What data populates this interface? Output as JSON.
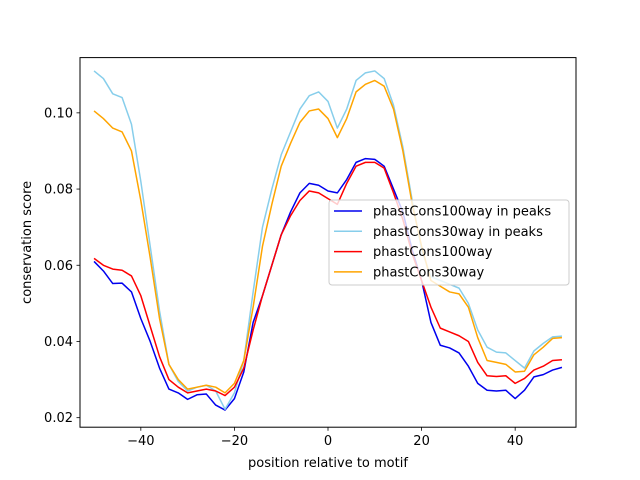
{
  "chart_data": {
    "type": "line",
    "title": "",
    "xlabel": "position relative to motif",
    "ylabel": "conservation score",
    "xlim": [
      -53,
      53
    ],
    "ylim": [
      0.0175,
      0.1145
    ],
    "xticks": [
      -40,
      -20,
      0,
      20,
      40
    ],
    "xtick_labels": [
      "−40",
      "−20",
      "0",
      "20",
      "40"
    ],
    "yticks": [
      0.02,
      0.04,
      0.06,
      0.08,
      0.1
    ],
    "ytick_labels": [
      "0.02",
      "0.04",
      "0.06",
      "0.08",
      "0.10"
    ],
    "legend_position": "center-right",
    "series": [
      {
        "name": "phastCons100way in peaks",
        "color": "#0000ee",
        "points": [
          [
            -50,
            0.061
          ],
          [
            -48,
            0.0585
          ],
          [
            -46,
            0.0552
          ],
          [
            -44,
            0.0553
          ],
          [
            -42,
            0.053
          ],
          [
            -40,
            0.046
          ],
          [
            -38,
            0.04
          ],
          [
            -36,
            0.033
          ],
          [
            -34,
            0.0275
          ],
          [
            -32,
            0.0265
          ],
          [
            -30,
            0.0248
          ],
          [
            -28,
            0.026
          ],
          [
            -26,
            0.0262
          ],
          [
            -24,
            0.0233
          ],
          [
            -22,
            0.022
          ],
          [
            -20,
            0.025
          ],
          [
            -18,
            0.032
          ],
          [
            -16,
            0.045
          ],
          [
            -14,
            0.052
          ],
          [
            -12,
            0.06
          ],
          [
            -10,
            0.068
          ],
          [
            -8,
            0.074
          ],
          [
            -6,
            0.079
          ],
          [
            -4,
            0.0815
          ],
          [
            -2,
            0.081
          ],
          [
            0,
            0.0795
          ],
          [
            2,
            0.079
          ],
          [
            4,
            0.0825
          ],
          [
            6,
            0.087
          ],
          [
            8,
            0.088
          ],
          [
            10,
            0.0878
          ],
          [
            12,
            0.086
          ],
          [
            14,
            0.08
          ],
          [
            16,
            0.074
          ],
          [
            18,
            0.064
          ],
          [
            20,
            0.056
          ],
          [
            22,
            0.045
          ],
          [
            24,
            0.039
          ],
          [
            26,
            0.0383
          ],
          [
            28,
            0.037
          ],
          [
            30,
            0.0335
          ],
          [
            32,
            0.029
          ],
          [
            34,
            0.0272
          ],
          [
            36,
            0.027
          ],
          [
            38,
            0.0272
          ],
          [
            40,
            0.025
          ],
          [
            42,
            0.0272
          ],
          [
            44,
            0.0307
          ],
          [
            46,
            0.0313
          ],
          [
            48,
            0.0325
          ],
          [
            50,
            0.0332
          ]
        ]
      },
      {
        "name": "phastCons30way in peaks",
        "color": "#87ceeb",
        "points": [
          [
            -50,
            0.111
          ],
          [
            -48,
            0.109
          ],
          [
            -46,
            0.105
          ],
          [
            -44,
            0.104
          ],
          [
            -42,
            0.097
          ],
          [
            -40,
            0.082
          ],
          [
            -38,
            0.065
          ],
          [
            -36,
            0.048
          ],
          [
            -34,
            0.034
          ],
          [
            -32,
            0.0295
          ],
          [
            -30,
            0.027
          ],
          [
            -28,
            0.028
          ],
          [
            -26,
            0.0285
          ],
          [
            -24,
            0.027
          ],
          [
            -22,
            0.0222
          ],
          [
            -20,
            0.0265
          ],
          [
            -18,
            0.035
          ],
          [
            -16,
            0.053
          ],
          [
            -14,
            0.07
          ],
          [
            -12,
            0.08
          ],
          [
            -10,
            0.089
          ],
          [
            -8,
            0.095
          ],
          [
            -6,
            0.101
          ],
          [
            -4,
            0.1045
          ],
          [
            -2,
            0.1055
          ],
          [
            0,
            0.103
          ],
          [
            2,
            0.096
          ],
          [
            4,
            0.101
          ],
          [
            6,
            0.1085
          ],
          [
            8,
            0.1105
          ],
          [
            10,
            0.111
          ],
          [
            12,
            0.109
          ],
          [
            14,
            0.102
          ],
          [
            16,
            0.091
          ],
          [
            18,
            0.077
          ],
          [
            20,
            0.064
          ],
          [
            22,
            0.057
          ],
          [
            24,
            0.056
          ],
          [
            26,
            0.055
          ],
          [
            28,
            0.054
          ],
          [
            30,
            0.05
          ],
          [
            32,
            0.043
          ],
          [
            34,
            0.0385
          ],
          [
            36,
            0.0372
          ],
          [
            38,
            0.037
          ],
          [
            40,
            0.035
          ],
          [
            42,
            0.033
          ],
          [
            44,
            0.0375
          ],
          [
            46,
            0.0395
          ],
          [
            48,
            0.0412
          ],
          [
            50,
            0.0414
          ]
        ]
      },
      {
        "name": "phastCons100way",
        "color": "#ff0000",
        "points": [
          [
            -50,
            0.0618
          ],
          [
            -48,
            0.06
          ],
          [
            -46,
            0.059
          ],
          [
            -44,
            0.0587
          ],
          [
            -42,
            0.0572
          ],
          [
            -40,
            0.052
          ],
          [
            -38,
            0.044
          ],
          [
            -36,
            0.036
          ],
          [
            -34,
            0.03
          ],
          [
            -32,
            0.028
          ],
          [
            -30,
            0.0265
          ],
          [
            -28,
            0.027
          ],
          [
            -26,
            0.0275
          ],
          [
            -24,
            0.027
          ],
          [
            -22,
            0.0258
          ],
          [
            -20,
            0.028
          ],
          [
            -18,
            0.033
          ],
          [
            -16,
            0.043
          ],
          [
            -14,
            0.052
          ],
          [
            -12,
            0.06
          ],
          [
            -10,
            0.068
          ],
          [
            -8,
            0.073
          ],
          [
            -6,
            0.077
          ],
          [
            -4,
            0.0795
          ],
          [
            -2,
            0.079
          ],
          [
            0,
            0.0775
          ],
          [
            2,
            0.076
          ],
          [
            4,
            0.0815
          ],
          [
            6,
            0.086
          ],
          [
            8,
            0.087
          ],
          [
            10,
            0.087
          ],
          [
            12,
            0.0855
          ],
          [
            14,
            0.079
          ],
          [
            16,
            0.072
          ],
          [
            18,
            0.063
          ],
          [
            20,
            0.056
          ],
          [
            22,
            0.049
          ],
          [
            24,
            0.0435
          ],
          [
            26,
            0.0425
          ],
          [
            28,
            0.0415
          ],
          [
            30,
            0.04
          ],
          [
            32,
            0.0345
          ],
          [
            34,
            0.031
          ],
          [
            36,
            0.0308
          ],
          [
            38,
            0.031
          ],
          [
            40,
            0.029
          ],
          [
            42,
            0.0303
          ],
          [
            44,
            0.0325
          ],
          [
            46,
            0.0335
          ],
          [
            48,
            0.035
          ],
          [
            50,
            0.0352
          ]
        ]
      },
      {
        "name": "phastCons30way",
        "color": "#ffa500",
        "points": [
          [
            -50,
            0.1005
          ],
          [
            -48,
            0.0985
          ],
          [
            -46,
            0.096
          ],
          [
            -44,
            0.095
          ],
          [
            -42,
            0.09
          ],
          [
            -40,
            0.077
          ],
          [
            -38,
            0.062
          ],
          [
            -36,
            0.046
          ],
          [
            -34,
            0.034
          ],
          [
            -32,
            0.03
          ],
          [
            -30,
            0.0275
          ],
          [
            -28,
            0.028
          ],
          [
            -26,
            0.0285
          ],
          [
            -24,
            0.028
          ],
          [
            -22,
            0.0265
          ],
          [
            -20,
            0.029
          ],
          [
            -18,
            0.035
          ],
          [
            -16,
            0.049
          ],
          [
            -14,
            0.065
          ],
          [
            -12,
            0.076
          ],
          [
            -10,
            0.086
          ],
          [
            -8,
            0.092
          ],
          [
            -6,
            0.0975
          ],
          [
            -4,
            0.1005
          ],
          [
            -2,
            0.101
          ],
          [
            0,
            0.0985
          ],
          [
            2,
            0.0935
          ],
          [
            4,
            0.0985
          ],
          [
            6,
            0.1055
          ],
          [
            8,
            0.1075
          ],
          [
            10,
            0.1085
          ],
          [
            12,
            0.107
          ],
          [
            14,
            0.101
          ],
          [
            16,
            0.09
          ],
          [
            18,
            0.076
          ],
          [
            20,
            0.065
          ],
          [
            22,
            0.056
          ],
          [
            24,
            0.0545
          ],
          [
            26,
            0.053
          ],
          [
            28,
            0.0525
          ],
          [
            30,
            0.049
          ],
          [
            32,
            0.041
          ],
          [
            34,
            0.035
          ],
          [
            36,
            0.0345
          ],
          [
            38,
            0.034
          ],
          [
            40,
            0.032
          ],
          [
            42,
            0.0322
          ],
          [
            44,
            0.0365
          ],
          [
            46,
            0.0385
          ],
          [
            48,
            0.0408
          ],
          [
            50,
            0.041
          ]
        ]
      }
    ]
  }
}
